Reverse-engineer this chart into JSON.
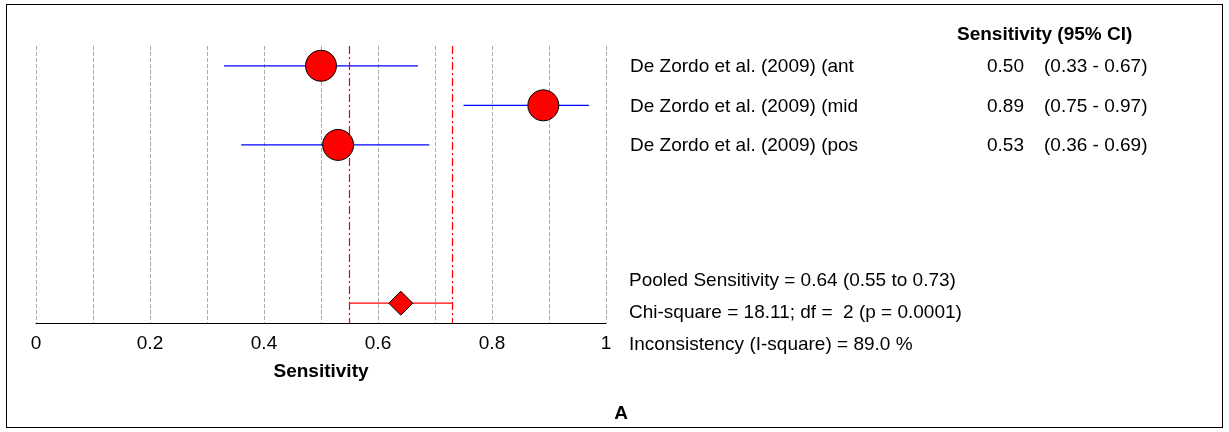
{
  "chart_data": {
    "type": "scatter",
    "orientation": "horizontal",
    "xlabel": "Sensitivity",
    "categories": [
      "De Zordo et al. (2009) (ant",
      "De Zordo et al. (2009) (mid",
      "De Zordo et al. (2009) (pos",
      null,
      null,
      null,
      null
    ],
    "series": [
      {
        "color": "#ff0000",
        "marker": "circle",
        "values": [
          0.5,
          0.89,
          0.53,
          null,
          null,
          null,
          null
        ],
        "errors": [
          [
            0.33,
            0.67
          ],
          [
            0.75,
            0.97
          ],
          [
            0.36,
            0.69
          ],
          null,
          null,
          null,
          null
        ],
        "value_labels": [
          "0.50",
          "0.89",
          "0.53",
          null,
          null,
          null,
          null
        ]
      },
      {
        "color": "#ff0000",
        "marker": "diamond",
        "values": [
          null,
          null,
          null,
          null,
          null,
          null,
          0.64
        ],
        "errors": [
          null,
          null,
          null,
          null,
          null,
          null,
          [
            0.55,
            0.73
          ]
        ]
      }
    ],
    "xlim": [
      0,
      1
    ],
    "xticks": [
      0,
      {
        "value": 0.1,
        "label": null
      },
      0.2,
      {
        "value": 0.3,
        "label": null
      },
      0.4,
      {
        "value": 0.5,
        "label": null
      },
      0.6,
      {
        "value": 0.7,
        "label": null
      },
      0.8,
      {
        "value": 0.9,
        "label": null
      },
      1
    ],
    "grid": "x",
    "ref_lines": [
      {
        "axis": "x",
        "value": 0.55,
        "color": "#ff0000",
        "line_style": "dashed"
      },
      {
        "axis": "x",
        "value": 0.73,
        "color": "#ff0000",
        "line_style": "dashed"
      }
    ],
    "annotations": [
      "Sensitivity (95% CI)",
      "(0.33 - 0.67)",
      "(0.75 - 0.97)",
      "(0.36 - 0.69)",
      "Pooled Sensitivity = 0.64 (0.55 to 0.73)",
      "Chi-square = 18.11; df =  2 (p = 0.0001)",
      "Inconsistency (I-square) = 89.0 %",
      "A"
    ]
  }
}
